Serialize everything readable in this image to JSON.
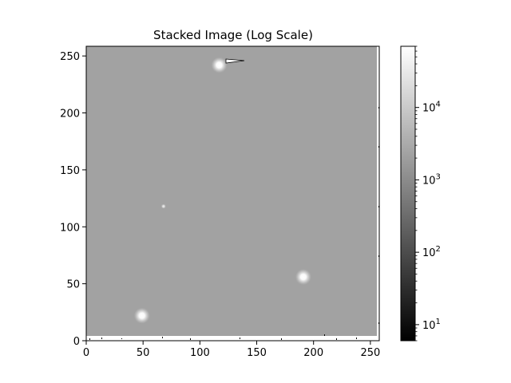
{
  "chart_data": {
    "type": "heatmap",
    "title": "Stacked Image (Log Scale)",
    "xlabel": "",
    "ylabel": "",
    "xlim": [
      0,
      255
    ],
    "ylim": [
      0,
      255
    ],
    "xticks": [
      0,
      50,
      100,
      150,
      200,
      250
    ],
    "yticks": [
      0,
      50,
      100,
      150,
      200,
      250
    ],
    "background_level": 2000,
    "colormap": "gray",
    "colorbar": {
      "scale": "log",
      "range": [
        6,
        70000
      ],
      "ticks": [
        {
          "value": 10,
          "base": "10",
          "exp": "1"
        },
        {
          "value": 100,
          "base": "10",
          "exp": "2"
        },
        {
          "value": 1000,
          "base": "10",
          "exp": "3"
        },
        {
          "value": 10000,
          "base": "10",
          "exp": "4"
        }
      ]
    },
    "sources": [
      {
        "x": 117,
        "y": 242,
        "peak": 70000
      },
      {
        "x": 191,
        "y": 56,
        "peak": 60000
      },
      {
        "x": 49,
        "y": 22,
        "peak": 60000
      },
      {
        "x": 68,
        "y": 118,
        "peak": 4000
      }
    ],
    "grid": false
  }
}
